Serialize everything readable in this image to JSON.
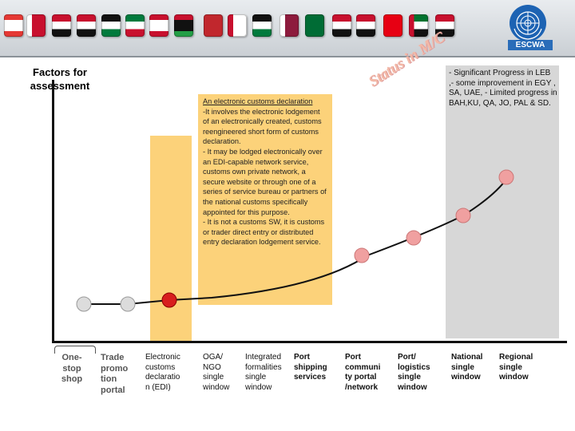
{
  "header": {
    "logo_text": "ESCWA",
    "flags": [
      "lebanon-flag",
      "bahrain-flag",
      "egypt-flag",
      "iraq-flag",
      "jordan-flag",
      "kuwait-flag",
      "lebanon-flag",
      "libya-flag",
      "morocco-flag",
      "oman-flag",
      "palestine-flag",
      "qatar-flag",
      "saudi-flag",
      "sudan-flag",
      "syria-flag",
      "tunisia-flag",
      "uae-flag",
      "yemen-flag"
    ]
  },
  "axis_title": "Factors for assessment",
  "status_label": "Status in M/C",
  "info_box": {
    "title": "An electronic customs declaration",
    "body": "-It involves the electronic lodgement of an electronically created, customs reengineered short form of customs declaration.\n- It may be lodged electronically over an EDI-capable network service, customs own private network, a secure website or through one of a series of service bureau or partners of the national customs specifically appointed for this purpose.\n- It is not a customs SW, it is customs or trader direct entry or distributed entry declaration lodgement service."
  },
  "progress_note": "- Significant Progress in LEB ,- some improvement in EGY , SA, UAE,  - Limited progress in BAH,KU, QA, JO, PAL & SD.",
  "stages": [
    {
      "label": "One-\nstop\nshop"
    },
    {
      "label": "Trade\npromo\ntion\nportal"
    },
    {
      "label": "Electronic\ncustoms\ndeclaratio\nn (EDI)"
    },
    {
      "label": "OGA/\nNGO\nsingle\nwindow"
    },
    {
      "label": "Integrated\nformalities\nsingle\nwindow"
    },
    {
      "label": "Port\nshipping\nservices"
    },
    {
      "label": "Port\ncommuni\nty portal\n/network"
    },
    {
      "label": "Port/\nlogistics\nsingle\nwindow"
    },
    {
      "label": "National\nsingle\nwindow"
    },
    {
      "label": "Regional\nsingle\nwindow"
    }
  ],
  "colors": {
    "highlight": "#fcd27a",
    "current_marker": "#d81e1e",
    "future_marker": "#f0a0a0",
    "past_marker": "#dcdcdc",
    "panel": "#d7d7d7"
  }
}
